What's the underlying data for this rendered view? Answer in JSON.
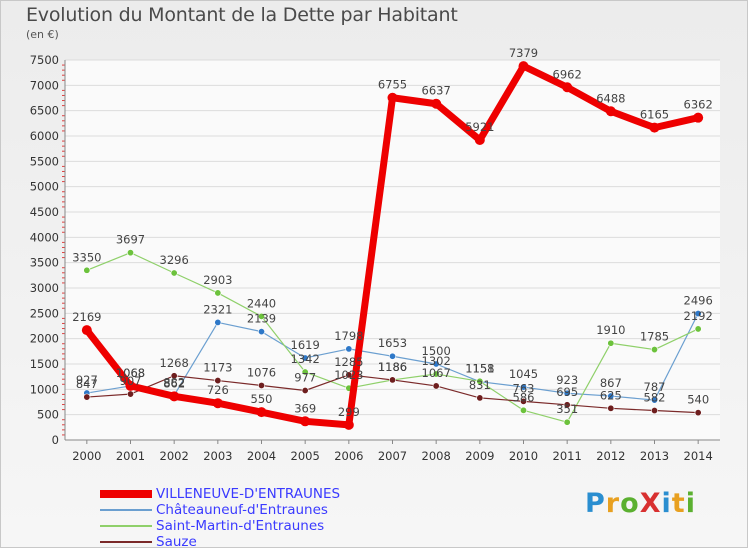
{
  "chart_data": {
    "type": "line",
    "title": "Evolution du Montant de la Dette par Habitant",
    "unit_label": "(en €)",
    "x": [
      "2000",
      "2001",
      "2002",
      "2003",
      "2004",
      "2005",
      "2006",
      "2007",
      "2008",
      "2009",
      "2010",
      "2011",
      "2012",
      "2013",
      "2014"
    ],
    "ylim": [
      0,
      7500
    ],
    "yticks": [
      0,
      500,
      1000,
      1500,
      2000,
      2500,
      3000,
      3500,
      4000,
      4500,
      5000,
      5500,
      6000,
      6500,
      7000,
      7500
    ],
    "grid": "horizontal",
    "legend_position": "bottom-left",
    "series": [
      {
        "name": "VILLENEUVE-D'ENTRAUNES",
        "color": "#ee0000",
        "point_color": "#ee0000",
        "width": 7,
        "values": [
          2169,
          1068,
          862,
          726,
          550,
          369,
          299,
          6755,
          6637,
          5921,
          7379,
          6962,
          6488,
          6165,
          6362
        ],
        "labels": [
          "2169",
          "1068",
          "862",
          "726",
          "550",
          "369",
          "299",
          "6755",
          "6637",
          "5921",
          "7379",
          "6962",
          "6488",
          "6165",
          "6362"
        ]
      },
      {
        "name": "Châteauneuf-d'Entraunes",
        "color": "#6b9fd0",
        "point_color": "#2e78c8",
        "width": 1.2,
        "values": [
          927,
          1068,
          882,
          2321,
          2139,
          1619,
          1798,
          1653,
          1500,
          1151,
          1045,
          923,
          867,
          787,
          2496
        ],
        "labels": [
          "927",
          "1068",
          "882",
          "2321",
          "2139",
          "1619",
          "1798",
          "1653",
          "1500",
          "1151",
          "1045",
          "923",
          "867",
          "787",
          "2496"
        ]
      },
      {
        "name": "Saint-Martin-d'Entraunes",
        "color": "#8fd06a",
        "point_color": "#6cc23c",
        "width": 1.2,
        "values": [
          3350,
          3697,
          3296,
          2903,
          2440,
          1342,
          1023,
          1186,
          1302,
          1158,
          586,
          351,
          1910,
          1785,
          2192
        ],
        "labels": [
          "3350",
          "3697",
          "3296",
          "2903",
          "2440",
          "1342",
          "1023",
          "1186",
          "1302",
          "1158",
          "586",
          "351",
          "1910",
          "1785",
          "2192"
        ]
      },
      {
        "name": "Sauze",
        "color": "#7b2a2a",
        "point_color": "#6e1e1e",
        "width": 1.2,
        "values": [
          847,
          907,
          1268,
          1173,
          1076,
          977,
          1285,
          1186,
          1067,
          831,
          763,
          695,
          625,
          582,
          540
        ],
        "labels": [
          "847",
          "907",
          "1268",
          "1173",
          "1076",
          "977",
          "1285",
          "1186",
          "1067",
          "831",
          "763",
          "695",
          "625",
          "582",
          "540"
        ]
      }
    ]
  },
  "logo": {
    "text": "ProXiti",
    "letters": [
      "P",
      "r",
      "o",
      "X",
      "i",
      "t",
      "i"
    ],
    "colors": [
      "#2a8ed0",
      "#e8a020",
      "#5bb030",
      "#d83030",
      "#2a8ed0",
      "#e8a020",
      "#5bb030"
    ]
  }
}
